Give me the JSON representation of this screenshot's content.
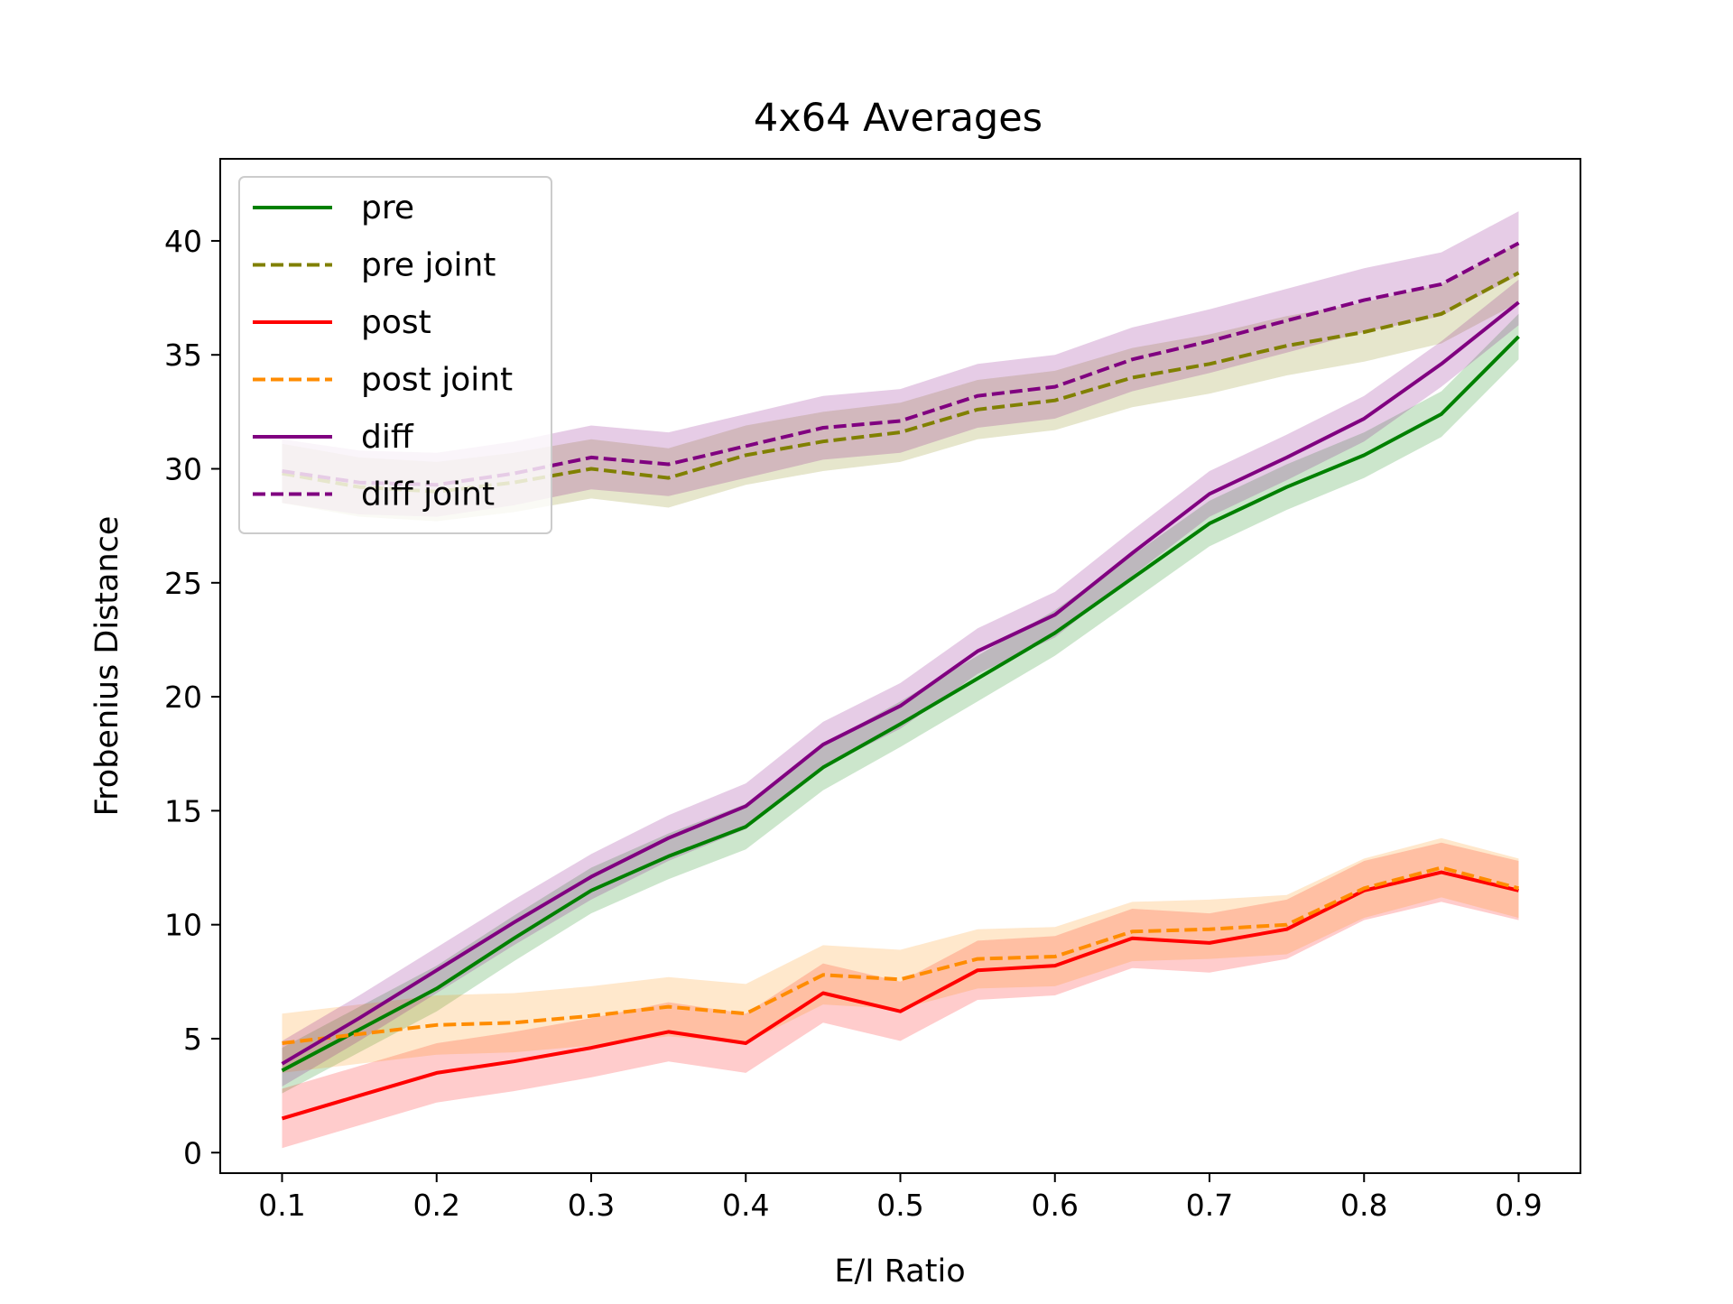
{
  "chart_data": {
    "type": "line",
    "title": "4x64 Averages",
    "xlabel": "E/I Ratio",
    "ylabel": "Frobenius Distance",
    "xlim": [
      0.06,
      0.94
    ],
    "ylim": [
      -0.9,
      43.6
    ],
    "xticks": [
      "0.1",
      "0.2",
      "0.3",
      "0.4",
      "0.5",
      "0.6",
      "0.7",
      "0.8",
      "0.9"
    ],
    "yticks": [
      "0",
      "5",
      "10",
      "15",
      "20",
      "25",
      "30",
      "35",
      "40"
    ],
    "grid": false,
    "legend_position": "top-left",
    "series": [
      {
        "name": "pre",
        "color": "#008000",
        "dash": "solid",
        "x": [
          0.1,
          0.15,
          0.2,
          0.25,
          0.3,
          0.35,
          0.4,
          0.45,
          0.5,
          0.55,
          0.6,
          0.65,
          0.7,
          0.75,
          0.8,
          0.85,
          0.9
        ],
        "y": [
          3.6,
          5.4,
          7.2,
          9.4,
          11.5,
          13.0,
          14.3,
          16.9,
          18.8,
          20.8,
          22.8,
          25.2,
          27.6,
          29.2,
          30.6,
          32.4,
          35.8
        ],
        "band": 1.0
      },
      {
        "name": "pre joint",
        "color": "#808000",
        "dash": "dashed",
        "x": [
          0.1,
          0.15,
          0.2,
          0.25,
          0.3,
          0.35,
          0.4,
          0.45,
          0.5,
          0.55,
          0.6,
          0.65,
          0.7,
          0.75,
          0.8,
          0.85,
          0.9
        ],
        "y": [
          29.8,
          29.2,
          29.0,
          29.4,
          30.0,
          29.6,
          30.6,
          31.2,
          31.6,
          32.6,
          33.0,
          34.0,
          34.6,
          35.4,
          36.0,
          36.8,
          38.6
        ],
        "band": 1.3
      },
      {
        "name": "post",
        "color": "#ff0000",
        "dash": "solid",
        "x": [
          0.1,
          0.15,
          0.2,
          0.25,
          0.3,
          0.35,
          0.4,
          0.45,
          0.5,
          0.55,
          0.6,
          0.65,
          0.7,
          0.75,
          0.8,
          0.85,
          0.9
        ],
        "y": [
          1.5,
          2.5,
          3.5,
          4.0,
          4.6,
          5.3,
          4.8,
          7.0,
          6.2,
          8.0,
          8.2,
          9.4,
          9.2,
          9.8,
          11.5,
          12.3,
          11.5
        ],
        "band": 1.3
      },
      {
        "name": "post joint",
        "color": "#ff8c00",
        "dash": "dashed",
        "x": [
          0.1,
          0.15,
          0.2,
          0.25,
          0.3,
          0.35,
          0.4,
          0.45,
          0.5,
          0.55,
          0.6,
          0.65,
          0.7,
          0.75,
          0.8,
          0.85,
          0.9
        ],
        "y": [
          4.8,
          5.2,
          5.6,
          5.7,
          6.0,
          6.4,
          6.1,
          7.8,
          7.6,
          8.5,
          8.6,
          9.7,
          9.8,
          10.0,
          11.6,
          12.5,
          11.6
        ],
        "band": 1.3
      },
      {
        "name": "diff",
        "color": "#800080",
        "dash": "solid",
        "x": [
          0.1,
          0.15,
          0.2,
          0.25,
          0.3,
          0.35,
          0.4,
          0.45,
          0.5,
          0.55,
          0.6,
          0.65,
          0.7,
          0.75,
          0.8,
          0.85,
          0.9
        ],
        "y": [
          3.9,
          5.9,
          8.0,
          10.1,
          12.1,
          13.8,
          15.2,
          17.9,
          19.6,
          22.0,
          23.6,
          26.3,
          28.9,
          30.5,
          32.2,
          34.6,
          37.3
        ],
        "band": 1.0
      },
      {
        "name": "diff joint",
        "color": "#800080",
        "dash": "dashed",
        "x": [
          0.1,
          0.15,
          0.2,
          0.25,
          0.3,
          0.35,
          0.4,
          0.45,
          0.5,
          0.55,
          0.6,
          0.65,
          0.7,
          0.75,
          0.8,
          0.85,
          0.9
        ],
        "y": [
          29.9,
          29.4,
          29.3,
          29.8,
          30.5,
          30.2,
          31.0,
          31.8,
          32.1,
          33.2,
          33.6,
          34.8,
          35.6,
          36.5,
          37.4,
          38.1,
          39.9
        ],
        "band": 1.4
      }
    ]
  }
}
